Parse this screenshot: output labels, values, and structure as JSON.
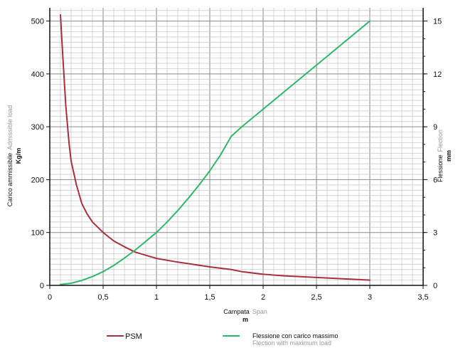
{
  "chart_data": {
    "type": "line",
    "xlabel": "Campata",
    "xlabel_en": "Span",
    "xunit": "m",
    "ylabel": "Carico ammissibile",
    "ylabel_en": "Admissible load",
    "yunit": "Kg/m",
    "y2label": "Flessione",
    "y2label_en": "Flection",
    "y2unit": "mm",
    "xlim": [
      0,
      3.5
    ],
    "ylim": [
      0,
      525
    ],
    "y2lim": [
      0,
      15.75
    ],
    "grid": true,
    "legend_position": "bottom",
    "x_ticks": [
      "0",
      "0,5",
      "1",
      "1,5",
      "2",
      "2,5",
      "3",
      "3,5"
    ],
    "y_ticks": [
      "0",
      "100",
      "200",
      "300",
      "400",
      "500"
    ],
    "y2_ticks": [
      "0",
      "3",
      "6",
      "9",
      "12",
      "15"
    ],
    "series": [
      {
        "name": "PSM",
        "axis": "left",
        "color": "#a8303e",
        "x": [
          0.1,
          0.12,
          0.15,
          0.18,
          0.2,
          0.25,
          0.3,
          0.35,
          0.4,
          0.5,
          0.6,
          0.7,
          0.8,
          0.9,
          1.0,
          1.2,
          1.4,
          1.5,
          1.7,
          1.8,
          2.0,
          2.2,
          2.5,
          2.8,
          3.0
        ],
        "values": [
          512,
          440,
          340,
          270,
          235,
          190,
          155,
          135,
          120,
          100,
          84,
          73,
          63,
          57,
          51,
          44,
          38,
          35,
          30,
          26,
          21,
          18,
          15,
          12,
          10
        ]
      },
      {
        "name": "Flessione con carico massimo",
        "name_en": "Flection with maximum load",
        "axis": "right",
        "color": "#2db86a",
        "x": [
          0.1,
          0.2,
          0.3,
          0.4,
          0.5,
          0.6,
          0.7,
          0.8,
          0.9,
          1.0,
          1.1,
          1.2,
          1.3,
          1.4,
          1.5,
          1.6,
          1.7,
          1.8,
          2.0,
          2.2,
          2.4,
          2.6,
          2.8,
          3.0
        ],
        "values": [
          0.05,
          0.12,
          0.28,
          0.5,
          0.78,
          1.13,
          1.55,
          2.0,
          2.5,
          3.0,
          3.6,
          4.25,
          4.95,
          5.7,
          6.5,
          7.4,
          8.45,
          9.0,
          10.0,
          11.0,
          12.0,
          13.0,
          14.0,
          15.0
        ]
      }
    ]
  }
}
